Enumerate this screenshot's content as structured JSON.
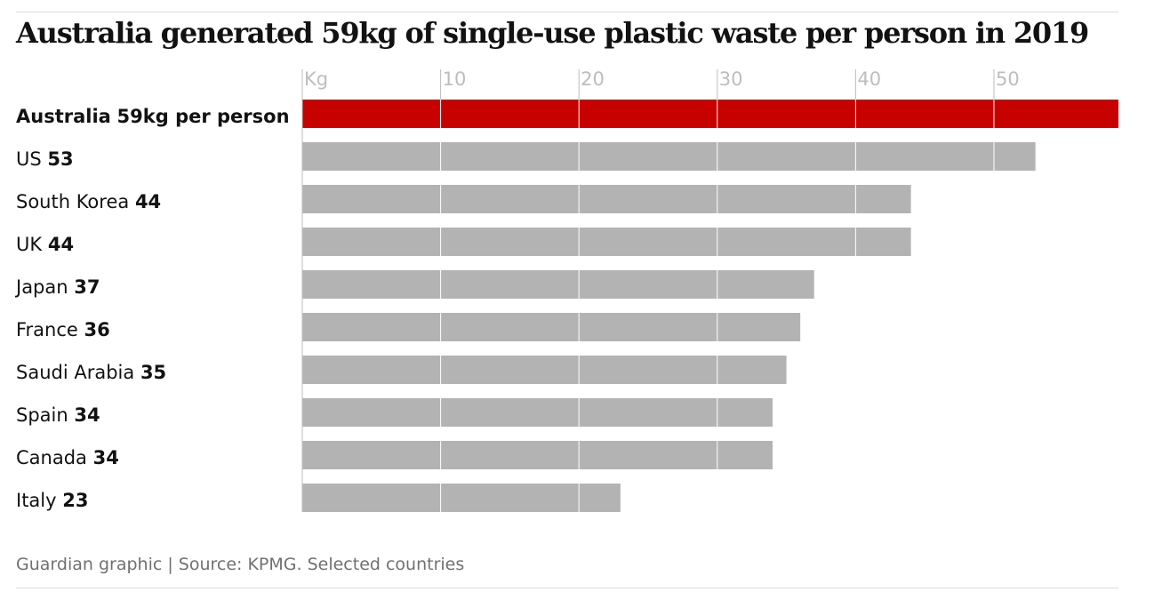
{
  "title": "Australia generated 59kg of single-use plastic waste per person in 2019",
  "source": "Guardian graphic | Source: KPMG. Selected countries",
  "colors": {
    "highlight": "#c70000",
    "bar": "#b3b3b3",
    "grid": "#ffffff",
    "tick": "#bdbdbd"
  },
  "chart_data": {
    "type": "bar",
    "orientation": "horizontal",
    "title": "Australia generated 59kg of single-use plastic waste per person in 2019",
    "xlabel": "Kg",
    "ylabel": "",
    "xlim": [
      0,
      59
    ],
    "grid": true,
    "x_ticks": [
      {
        "value": 0,
        "label": "Kg"
      },
      {
        "value": 10,
        "label": "10"
      },
      {
        "value": 20,
        "label": "20"
      },
      {
        "value": 30,
        "label": "30"
      },
      {
        "value": 40,
        "label": "40"
      },
      {
        "value": 50,
        "label": "50"
      }
    ],
    "categories": [
      "Australia",
      "US",
      "South Korea",
      "UK",
      "Japan",
      "France",
      "Saudi Arabia",
      "Spain",
      "Canada",
      "Italy"
    ],
    "values": [
      59,
      53,
      44,
      44,
      37,
      36,
      35,
      34,
      34,
      23
    ],
    "value_labels": [
      "59kg per person",
      "53",
      "44",
      "44",
      "37",
      "36",
      "35",
      "34",
      "34",
      "23"
    ],
    "highlight_index": 0
  }
}
